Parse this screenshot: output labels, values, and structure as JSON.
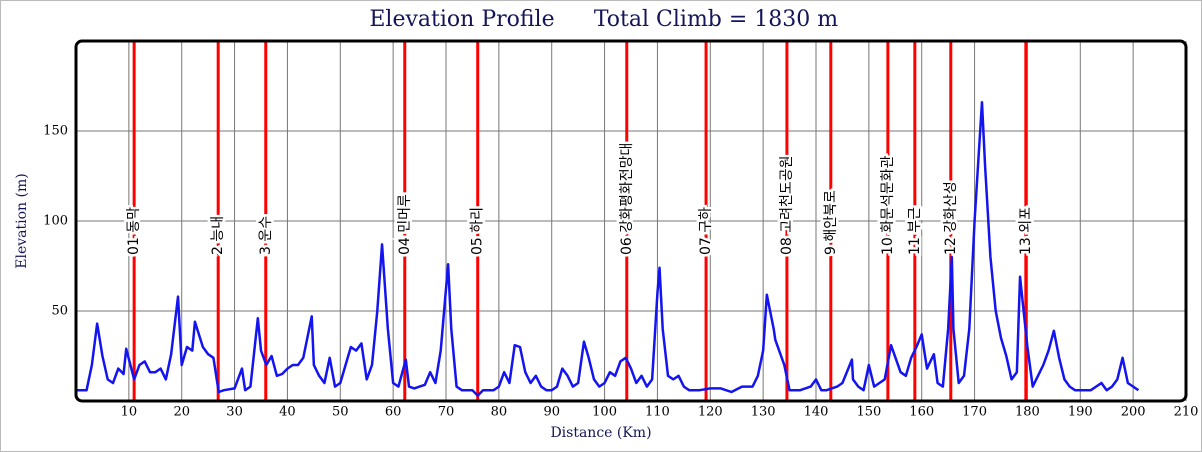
{
  "chart_data": {
    "type": "line",
    "title": "Elevation Profile",
    "subtitle": "Total Climb = 1830 m",
    "xlabel": "Distance (Km)",
    "ylabel": "Elevation (m)",
    "xlim": [
      0,
      210
    ],
    "ylim": [
      0,
      200
    ],
    "xticks": [
      10,
      20,
      30,
      40,
      50,
      60,
      70,
      80,
      90,
      100,
      110,
      120,
      130,
      140,
      150,
      160,
      170,
      180,
      190,
      200,
      210
    ],
    "yticks": [
      50,
      100,
      150
    ],
    "grid": true,
    "color": "#1414f0",
    "marker_color": "#ff0000",
    "x": [
      0,
      2,
      3,
      4,
      5,
      6,
      7,
      8,
      9,
      9.5,
      11,
      12,
      13,
      14,
      15,
      16,
      17,
      18,
      19.3,
      20,
      21,
      22,
      22.5,
      24,
      25,
      26,
      27,
      28,
      30,
      31.4,
      32,
      33,
      34.4,
      35,
      36,
      37,
      38,
      39,
      40,
      41,
      42,
      43,
      44.6,
      45,
      46,
      47,
      48,
      49,
      50,
      51,
      52,
      53,
      54,
      55,
      56,
      57,
      57.9,
      59,
      60,
      61,
      62.4,
      63,
      64,
      65,
      66,
      67,
      68,
      69,
      70.4,
      71,
      72,
      73,
      74,
      75,
      76,
      77,
      78,
      79,
      80,
      81,
      82,
      83,
      84,
      85,
      86,
      87,
      88,
      89,
      90,
      91,
      92,
      93,
      94,
      95,
      96.1,
      97,
      98,
      99,
      100,
      101,
      102,
      103,
      104,
      105,
      106,
      107,
      108,
      109,
      110,
      110.4,
      111,
      112,
      113,
      114,
      115,
      116,
      118,
      120,
      122,
      124,
      126,
      128,
      129,
      130,
      130.7,
      132,
      132.3,
      134,
      135,
      137,
      139,
      140,
      141,
      142,
      144,
      145,
      146.8,
      147,
      148,
      149,
      150,
      151,
      152,
      153,
      154.2,
      156,
      157,
      158,
      159,
      160,
      161,
      162.3,
      163,
      164,
      165,
      165.7,
      166,
      167,
      168,
      169,
      170,
      171.4,
      172,
      173,
      174,
      175,
      176,
      177,
      178,
      178.6,
      180,
      181,
      182,
      183,
      184,
      185,
      186,
      187,
      188,
      189,
      190,
      192,
      194,
      195,
      196,
      197,
      198,
      199,
      200,
      201
    ],
    "values": [
      6,
      6,
      20,
      43,
      25,
      12,
      10,
      18,
      15,
      29,
      12,
      20,
      22,
      16,
      16,
      18,
      12,
      26,
      58,
      20,
      30,
      28,
      44,
      30,
      26,
      24,
      5,
      6,
      7,
      18,
      6,
      8,
      46,
      28,
      20,
      25,
      14,
      15,
      18,
      20,
      20,
      24,
      47,
      20,
      14,
      10,
      24,
      8,
      10,
      20,
      30,
      28,
      32,
      12,
      20,
      50,
      87,
      40,
      10,
      8,
      23,
      8,
      7,
      8,
      9,
      16,
      10,
      28,
      76,
      40,
      8,
      6,
      6,
      6,
      3,
      6,
      6,
      6,
      8,
      16,
      10,
      31,
      30,
      16,
      10,
      14,
      8,
      6,
      6,
      8,
      18,
      14,
      8,
      10,
      33,
      24,
      12,
      8,
      10,
      16,
      14,
      22,
      24,
      18,
      10,
      14,
      8,
      12,
      60,
      74,
      40,
      14,
      12,
      14,
      8,
      6,
      6,
      7,
      7,
      5,
      8,
      8,
      14,
      28,
      59,
      40,
      34,
      20,
      6,
      6,
      8,
      12,
      6,
      6,
      8,
      10,
      23,
      12,
      8,
      6,
      20,
      8,
      10,
      12,
      31,
      16,
      14,
      24,
      30,
      37,
      18,
      26,
      10,
      8,
      40,
      80,
      40,
      10,
      14,
      40,
      100,
      166,
      130,
      80,
      50,
      35,
      25,
      12,
      16,
      69,
      30,
      8,
      14,
      20,
      28,
      39,
      24,
      12,
      8,
      6,
      6,
      6,
      10,
      6,
      8,
      12,
      24,
      10,
      8,
      6
    ],
    "markers": [
      {
        "x": 11,
        "label": "01 동막"
      },
      {
        "x": 26.9,
        "label": "2 능내"
      },
      {
        "x": 35.9,
        "label": "3 운수"
      },
      {
        "x": 62.2,
        "label": "04 민머루"
      },
      {
        "x": 76,
        "label": "05 하리"
      },
      {
        "x": 104.2,
        "label": "06 강화평화전망대"
      },
      {
        "x": 119.2,
        "label": "07 구하"
      },
      {
        "x": 134.5,
        "label": "08 고려천도공원"
      },
      {
        "x": 142.8,
        "label": "9 해안북로"
      },
      {
        "x": 153.6,
        "label": "10 화문석문화관"
      },
      {
        "x": 158.7,
        "label": "11 부근"
      },
      {
        "x": 165.5,
        "label": "12 강화산성"
      },
      {
        "x": 179.7,
        "label": "13 외포"
      }
    ]
  }
}
